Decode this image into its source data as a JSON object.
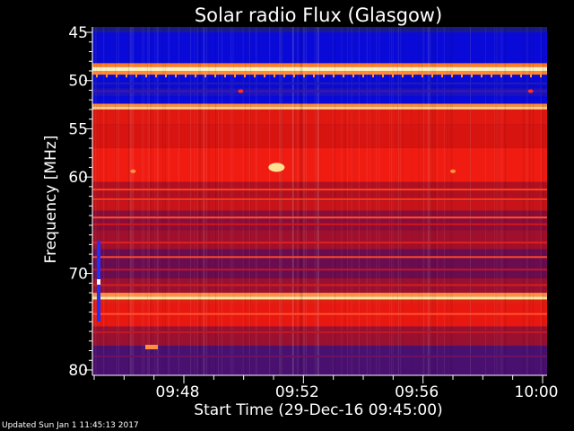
{
  "chart_data": {
    "type": "heatmap",
    "title": "Solar radio Flux (Glasgow)",
    "xlabel": "Start Time (29-Dec-16 09:45:00)",
    "ylabel": "Frequency [MHz]",
    "x_tick_labels": [
      "09:48",
      "09:52",
      "09:56",
      "10:00"
    ],
    "x_tick_minutes": [
      3,
      7,
      11,
      15
    ],
    "y_tick_labels": [
      "45",
      "50",
      "55",
      "60",
      "70",
      "80"
    ],
    "y_tick_values": [
      45,
      50,
      55,
      60,
      70,
      80
    ],
    "x_range_minutes": [
      0,
      15
    ],
    "y_range_mhz": [
      45,
      80
    ],
    "y_inverted": true,
    "bands": [
      {
        "from": 44.5,
        "to": 45.0,
        "color": "#1a1a8a"
      },
      {
        "from": 45.0,
        "to": 48.2,
        "color": "#0a0ad8"
      },
      {
        "from": 48.2,
        "to": 48.6,
        "color": "#ff7a20"
      },
      {
        "from": 48.6,
        "to": 49.0,
        "color": "#fff4c0"
      },
      {
        "from": 49.0,
        "to": 49.4,
        "color": "#ff8a30"
      },
      {
        "from": 49.4,
        "to": 50.8,
        "color": "#0a0ad8"
      },
      {
        "from": 50.8,
        "to": 51.6,
        "color": "#1a12c0"
      },
      {
        "from": 51.6,
        "to": 52.4,
        "color": "#0a0ad8"
      },
      {
        "from": 52.4,
        "to": 52.7,
        "color": "#ff8a30"
      },
      {
        "from": 52.7,
        "to": 53.0,
        "color": "#ffcc80"
      },
      {
        "from": 53.0,
        "to": 54.5,
        "color": "#e01810"
      },
      {
        "from": 54.5,
        "to": 57.0,
        "color": "#d81410"
      },
      {
        "from": 57.0,
        "to": 60.5,
        "color": "#f01c12"
      },
      {
        "from": 60.5,
        "to": 62.5,
        "color": "#b01020"
      },
      {
        "from": 62.5,
        "to": 63.5,
        "color": "#c81418"
      },
      {
        "from": 63.5,
        "to": 65.5,
        "color": "#8a0c3a"
      },
      {
        "from": 65.5,
        "to": 67.5,
        "color": "#a0102c"
      },
      {
        "from": 67.5,
        "to": 70.5,
        "color": "#6a0c50"
      },
      {
        "from": 70.5,
        "to": 72.0,
        "color": "#9a1030"
      },
      {
        "from": 72.0,
        "to": 72.4,
        "color": "#ff9040"
      },
      {
        "from": 72.4,
        "to": 72.7,
        "color": "#ffe4a0"
      },
      {
        "from": 72.7,
        "to": 73.2,
        "color": "#e02010"
      },
      {
        "from": 73.2,
        "to": 75.5,
        "color": "#e81810"
      },
      {
        "from": 75.5,
        "to": 77.5,
        "color": "#9a1030"
      },
      {
        "from": 77.5,
        "to": 80.5,
        "color": "#4a1070"
      }
    ],
    "lines": [
      {
        "mhz": 50.3,
        "color": "#2020a0"
      },
      {
        "mhz": 51.1,
        "color": "#3a18b0"
      },
      {
        "mhz": 61.3,
        "color": "#ff4020"
      },
      {
        "mhz": 62.3,
        "color": "#ff3818"
      },
      {
        "mhz": 64.2,
        "color": "#ff5028"
      },
      {
        "mhz": 64.9,
        "color": "#d01818"
      },
      {
        "mhz": 66.8,
        "color": "#e02020"
      },
      {
        "mhz": 68.3,
        "color": "#ff4828"
      },
      {
        "mhz": 69.6,
        "color": "#c01828"
      },
      {
        "mhz": 71.2,
        "color": "#d02020"
      },
      {
        "mhz": 74.2,
        "color": "#ff5030"
      },
      {
        "mhz": 76.1,
        "color": "#c01828"
      },
      {
        "mhz": 78.6,
        "color": "#6a1460"
      }
    ],
    "blobs": [
      {
        "minute": 6.1,
        "mhz": 59.0,
        "color": "#ffe090"
      },
      {
        "minute": 1.3,
        "mhz": 59.4,
        "color": "#ff9040"
      },
      {
        "minute": 12.0,
        "mhz": 59.4,
        "color": "#ff9040"
      },
      {
        "minute": 4.9,
        "mhz": 51.1,
        "color": "#ff3020"
      },
      {
        "minute": 14.6,
        "mhz": 51.1,
        "color": "#ff3020"
      }
    ]
  },
  "footer": {
    "updated": "Updated Sun Jan  1 11:45:13 2017"
  }
}
